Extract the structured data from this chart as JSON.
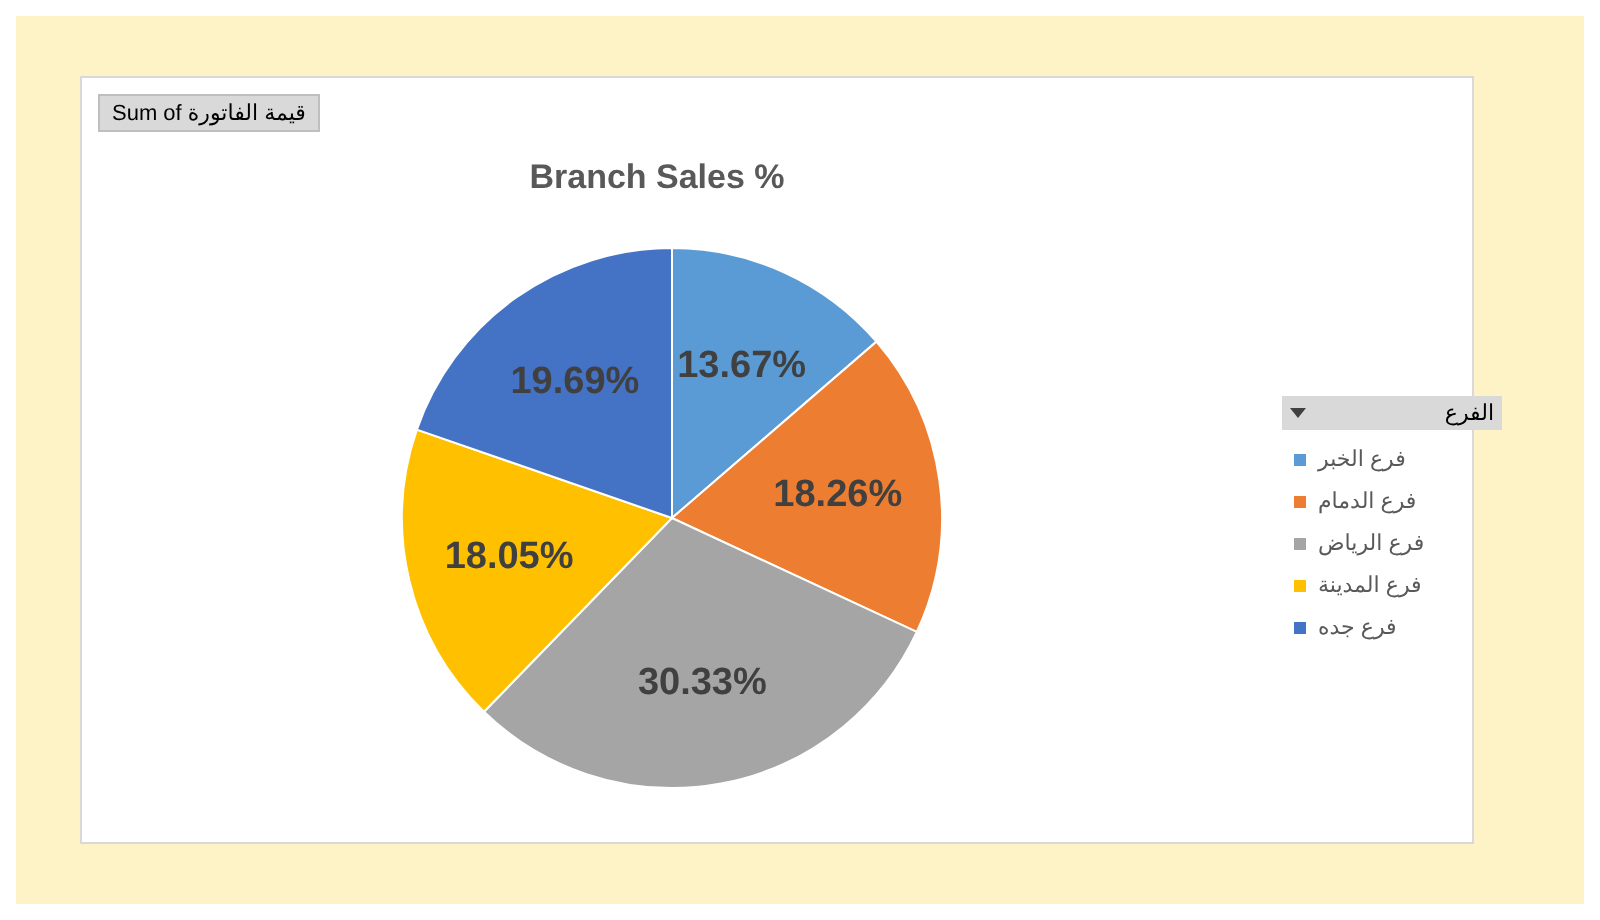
{
  "chart_data": {
    "type": "pie",
    "title": "Branch Sales %",
    "categories": [
      "فرع الخبر",
      "فرع الدمام",
      "فرع الرياض",
      "فرع المدينة",
      "فرع جده"
    ],
    "values": [
      13.67,
      18.26,
      30.33,
      18.05,
      19.69
    ],
    "colors": [
      "#5b9bd5",
      "#ed7d31",
      "#a5a5a5",
      "#ffc000",
      "#4472c4"
    ],
    "value_labels": [
      "13.67%",
      "18.26%",
      "30.33%",
      "18.05%",
      "19.69%"
    ],
    "legend_title": "الفرع",
    "legend": "right",
    "annotations": [
      "Sum of قيمة الفاتورة"
    ]
  }
}
